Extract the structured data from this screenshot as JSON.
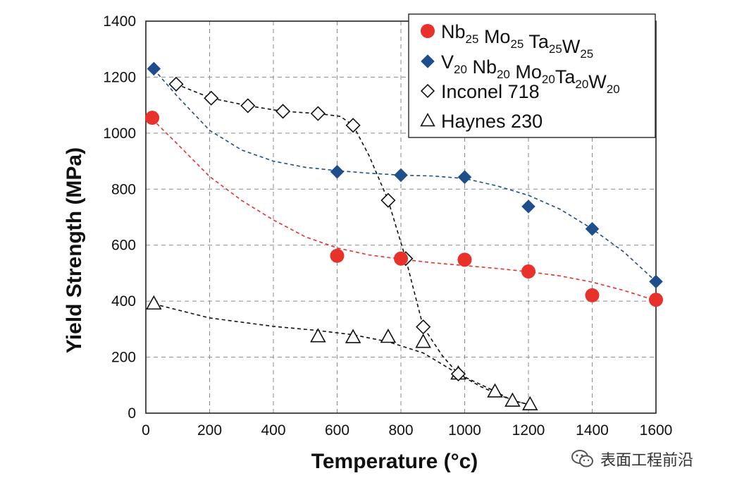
{
  "chart_data": {
    "type": "scatter",
    "xlabel": "Temperature (°c)",
    "ylabel": "Yield Strength  (MPa)",
    "xlim": [
      0,
      1600
    ],
    "ylim": [
      0,
      1400
    ],
    "x_ticks": [
      0,
      200,
      400,
      600,
      800,
      1000,
      1200,
      1400,
      1600
    ],
    "y_ticks": [
      0,
      200,
      400,
      600,
      800,
      1000,
      1200,
      1400
    ],
    "grid": true,
    "legend_position": "top-right",
    "series": [
      {
        "name": "Nb25 Mo25 Ta25W25",
        "legend_parts": [
          [
            "Nb",
            "25"
          ],
          [
            " Mo",
            "25"
          ],
          [
            " Ta",
            "25"
          ],
          [
            "W",
            "25"
          ]
        ],
        "marker": "circle",
        "color": "#e8312a",
        "line_color": "#e8312a",
        "x": [
          20,
          600,
          800,
          1000,
          1200,
          1400,
          1600
        ],
        "y": [
          1055,
          562,
          552,
          548,
          506,
          421,
          405
        ],
        "trend_x": [
          20,
          100,
          200,
          300,
          400,
          500,
          600,
          700,
          800,
          900,
          1000,
          1100,
          1200,
          1300,
          1400,
          1500,
          1600
        ],
        "trend_y": [
          1050,
          960,
          845,
          760,
          690,
          630,
          590,
          565,
          550,
          537,
          527,
          517,
          505,
          490,
          468,
          438,
          402
        ]
      },
      {
        "name": "V20 Nb20 Mo20Ta20W20",
        "legend_parts": [
          [
            "V",
            "20"
          ],
          [
            " Nb",
            "20"
          ],
          [
            " Mo",
            "20"
          ],
          [
            "Ta",
            "20"
          ],
          [
            "W",
            "20"
          ]
        ],
        "marker": "diamond",
        "color": "#1f4e8c",
        "line_color": "#1f4e8c",
        "x": [
          25,
          600,
          800,
          1000,
          1200,
          1400,
          1600
        ],
        "y": [
          1230,
          862,
          850,
          843,
          738,
          658,
          470
        ],
        "trend_x": [
          25,
          100,
          200,
          300,
          400,
          500,
          600,
          700,
          800,
          900,
          1000,
          1100,
          1200,
          1300,
          1400,
          1500,
          1600
        ],
        "trend_y": [
          1228,
          1130,
          1010,
          940,
          900,
          878,
          866,
          857,
          850,
          847,
          838,
          812,
          778,
          728,
          658,
          575,
          470
        ]
      },
      {
        "name": "Inconel 718",
        "marker": "diamond-open",
        "color": "#111111",
        "line_color": "#111111",
        "x": [
          95,
          205,
          320,
          430,
          540,
          650,
          760,
          815,
          870,
          980
        ],
        "y": [
          1175,
          1125,
          1098,
          1078,
          1070,
          1028,
          760,
          552,
          308,
          140
        ],
        "trend_x": [
          95,
          205,
          320,
          430,
          540,
          610,
          650,
          700,
          760,
          815,
          870,
          930,
          980,
          1050,
          1100,
          1150,
          1205
        ],
        "trend_y": [
          1175,
          1125,
          1098,
          1078,
          1070,
          1060,
          1028,
          920,
          760,
          552,
          308,
          205,
          140,
          95,
          70,
          45,
          30
        ]
      },
      {
        "name": "Haynes 230",
        "marker": "triangle-open",
        "color": "#111111",
        "line_color": "#111111",
        "x": [
          25,
          540,
          650,
          760,
          870,
          980,
          1095,
          1150,
          1205
        ],
        "y": [
          392,
          275,
          272,
          273,
          255,
          142,
          78,
          45,
          32
        ],
        "trend_x": [
          25,
          200,
          400,
          540,
          650,
          760,
          870,
          980,
          1095,
          1150,
          1205
        ],
        "trend_y": [
          390,
          340,
          310,
          295,
          280,
          255,
          215,
          140,
          78,
          45,
          30
        ]
      }
    ]
  },
  "watermark": {
    "text": "表面工程前沿",
    "icon": "wechat-icon",
    "color": "#333333"
  }
}
